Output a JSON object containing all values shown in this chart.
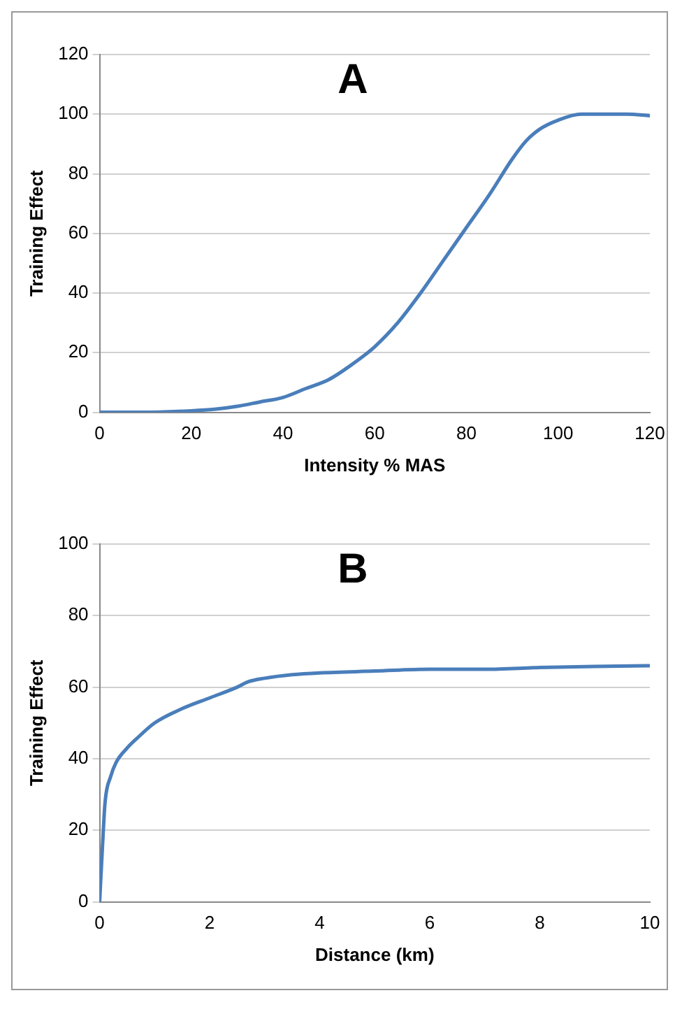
{
  "chart_data": [
    {
      "type": "line",
      "title": "A",
      "xlabel": "Intensity % MAS",
      "ylabel": "Training Effect",
      "xlim": [
        0,
        120
      ],
      "xticks": [
        0,
        20,
        40,
        60,
        80,
        100,
        120
      ],
      "ylim": [
        0,
        120
      ],
      "yticks": [
        0,
        20,
        40,
        60,
        80,
        100,
        120
      ],
      "grid": "y",
      "legend": false,
      "marker": "none",
      "series": [
        {
          "color": "#4a7ebb",
          "x": [
            0,
            10,
            20,
            25,
            30,
            35,
            40,
            45,
            50,
            55,
            60,
            65,
            70,
            75,
            80,
            85,
            90,
            93,
            96,
            100,
            105,
            110,
            115,
            120
          ],
          "values": [
            0,
            0,
            0.5,
            1,
            2,
            3.5,
            5,
            8,
            11,
            16,
            22,
            30,
            40,
            51,
            62,
            73,
            85,
            91,
            95,
            98,
            100,
            100,
            100,
            99.5
          ]
        }
      ]
    },
    {
      "type": "line",
      "title": "B",
      "xlabel": "Distance (km)",
      "ylabel": "Training Effect",
      "xlim": [
        0,
        10
      ],
      "xticks": [
        0,
        2,
        4,
        6,
        8,
        10
      ],
      "ylim": [
        0,
        100
      ],
      "yticks": [
        0,
        20,
        40,
        60,
        80,
        100
      ],
      "grid": "y",
      "legend": false,
      "marker": "none",
      "series": [
        {
          "color": "#4a7ebb",
          "x": [
            0,
            0.05,
            0.1,
            0.2,
            0.3,
            0.5,
            0.7,
            1,
            1.5,
            2,
            2.5,
            2.7,
            3,
            3.5,
            4,
            5,
            6,
            7,
            8,
            9,
            10
          ],
          "values": [
            0,
            15,
            28,
            35,
            39,
            43,
            46,
            50,
            54,
            57,
            60,
            61.5,
            62.5,
            63.5,
            64,
            64.5,
            65,
            65,
            65.5,
            65.8,
            66
          ]
        }
      ]
    }
  ]
}
